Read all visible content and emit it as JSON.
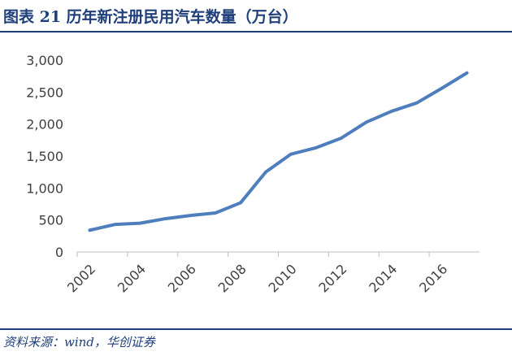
{
  "header": {
    "title": "图表 21    历年新注册民用汽车数量（万台）"
  },
  "footer": {
    "source": "资料来源：wind，华创证券"
  },
  "colors": {
    "line": "#4f7ebc",
    "axis": "#bfbfbf",
    "tick_text": "#404040",
    "brand": "#1f3f7a"
  },
  "chart_data": {
    "type": "line",
    "title": "历年新注册民用汽车数量（万台）",
    "x_ticks": [
      "2002",
      "2004",
      "2006",
      "2008",
      "2010",
      "2012",
      "2014",
      "2016"
    ],
    "y_ticks": [
      "0",
      "500",
      "1,000",
      "1,500",
      "2,000",
      "2,500",
      "3,000"
    ],
    "ylim": [
      0,
      3000
    ],
    "grid": false,
    "x": [
      2002,
      2003,
      2004,
      2005,
      2006,
      2007,
      2008,
      2009,
      2010,
      2011,
      2012,
      2013,
      2014,
      2015,
      2016,
      2017
    ],
    "values": [
      340,
      430,
      450,
      520,
      570,
      610,
      770,
      1250,
      1530,
      1630,
      1780,
      2030,
      2200,
      2330,
      2560,
      2800
    ]
  }
}
